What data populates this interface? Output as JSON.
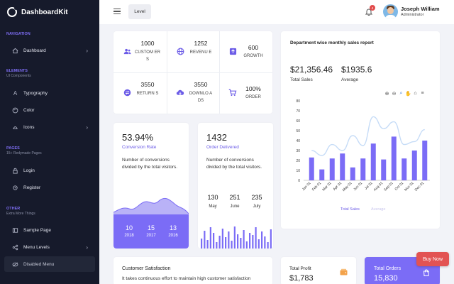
{
  "brand": {
    "name": "DashboardKit"
  },
  "sidebar": {
    "sections": [
      {
        "title": "NAVIGATION",
        "subtitle": ""
      },
      {
        "title": "ELEMENTS",
        "subtitle": "UI Components"
      },
      {
        "title": "PAGES",
        "subtitle": "15+ Redymade Pages"
      },
      {
        "title": "OTHER",
        "subtitle": "Extra More Things"
      }
    ],
    "items": [
      {
        "label": "Dashboard",
        "icon": "home-icon"
      },
      {
        "label": "Typography",
        "icon": "typography-icon"
      },
      {
        "label": "Color",
        "icon": "palette-icon"
      },
      {
        "label": "Icons",
        "icon": "icons-icon"
      },
      {
        "label": "Login",
        "icon": "lock-icon"
      },
      {
        "label": "Register",
        "icon": "register-icon"
      },
      {
        "label": "Sample Page",
        "icon": "sidebar-layout-icon"
      },
      {
        "label": "Menu Levels",
        "icon": "levels-icon"
      },
      {
        "label": "Disabled Menu",
        "icon": "disabled-icon"
      }
    ]
  },
  "header": {
    "level_button": "Level",
    "notification_count": "4",
    "user_name": "Joseph William",
    "user_role": "Administrator"
  },
  "stats": [
    {
      "value": "1000",
      "label": "CUSTOM ERS",
      "icon": "users-icon"
    },
    {
      "value": "1252",
      "label": "REVENU E",
      "icon": "globe-icon"
    },
    {
      "value": "600",
      "label": "GROWTH",
      "icon": "growth-icon"
    },
    {
      "value": "3550",
      "label": "RETURN S",
      "icon": "returns-icon"
    },
    {
      "value": "3550",
      "label": "DOWNLO ADS",
      "icon": "cloud-download-icon"
    },
    {
      "value": "100%",
      "label": "ORDER",
      "icon": "cart-icon"
    }
  ],
  "sales": {
    "title": "Department wise monthly sales report",
    "total_sales": "$21,356.46",
    "total_sales_label": "Total Sales",
    "average": "$1935.6",
    "average_label": "Average",
    "legend": [
      "Total Sales",
      "Average"
    ]
  },
  "conversion": {
    "value": "53.94%",
    "label": "Conversion Rate",
    "description": "Number of conversions divided by the total visitors.",
    "years": [
      {
        "value": "10",
        "year": "2018"
      },
      {
        "value": "15",
        "year": "2017"
      },
      {
        "value": "13",
        "year": "2016"
      }
    ]
  },
  "orders": {
    "value": "1432",
    "label": "Order Delivered",
    "description": "Number of conversions divided by the total visitors.",
    "months": [
      {
        "value": "130",
        "month": "May"
      },
      {
        "value": "251",
        "month": "June"
      },
      {
        "value": "235",
        "month": "July"
      }
    ]
  },
  "customer": {
    "title": "Customer Satisfaction",
    "text": "It takes continuous effort to maintain high customer satisfaction"
  },
  "profit": {
    "title": "Total Profit",
    "value": "$1,783"
  },
  "total_orders": {
    "title": "Total Orders",
    "value": "15,830"
  },
  "buy_now": "Buy Now",
  "colors": {
    "accent": "#7b6cf6",
    "sidebar": "#161a2b",
    "danger": "#e25353"
  },
  "chart_data": {
    "type": "bar",
    "title": "Department wise monthly sales report",
    "categories": [
      "Jan 01",
      "Feb 01",
      "Mar 01",
      "Apr 01",
      "May 01",
      "Jun 01",
      "Jul 01",
      "Aug 01",
      "Sep 01",
      "Oct 01",
      "Nov 01",
      "Dec 01"
    ],
    "series": [
      {
        "name": "Total Sales",
        "type": "bar",
        "values": [
          23,
          11,
          22,
          27,
          13,
          22,
          37,
          21,
          44,
          22,
          30,
          40
        ]
      },
      {
        "name": "Average",
        "type": "line",
        "values": [
          30,
          25,
          36,
          30,
          45,
          35,
          64,
          52,
          59,
          36,
          39,
          51
        ]
      }
    ],
    "ylim": [
      0,
      80
    ],
    "yticks": [
      0,
      10,
      20,
      30,
      40,
      50,
      60,
      70,
      80
    ],
    "legend": "bottom"
  }
}
